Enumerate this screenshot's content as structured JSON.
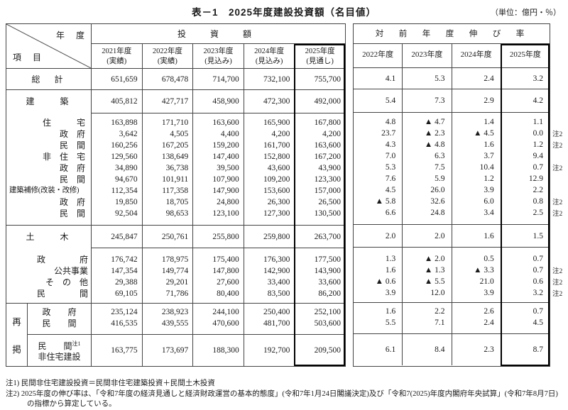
{
  "title": "表－1　2025年度建設投資額（名目値）",
  "unit_note": "（単位：億円・％）",
  "left_table": {
    "corner_top": "年　度",
    "corner_bottom": "項　目",
    "group_header": "投　資　額",
    "columns": [
      {
        "year": "2021年度",
        "kind": "(実績)"
      },
      {
        "year": "2022年度",
        "kind": "(実績)"
      },
      {
        "year": "2023年度",
        "kind": "(見込み)"
      },
      {
        "year": "2024年度",
        "kind": "(見込み)"
      },
      {
        "year": "2025年度",
        "kind": "(見通し)"
      }
    ]
  },
  "right_table": {
    "group_header": "対　前　年　度　伸　び　率",
    "columns": [
      "2022年度",
      "2023年度",
      "2024年度",
      "2025年度"
    ]
  },
  "saikei_label": "再掲",
  "note2_marker": "注2",
  "rows": [
    {
      "id": "sokei",
      "label": "総　計",
      "invest": [
        "651,659",
        "678,478",
        "714,700",
        "732,100",
        "755,700"
      ],
      "growth": [
        "4.1",
        "5.3",
        "2.4",
        "3.2"
      ],
      "note2": false
    },
    {
      "id": "kenchiku",
      "label": "建　　築",
      "invest": [
        "405,812",
        "427,717",
        "458,900",
        "472,300",
        "492,000"
      ],
      "growth": [
        "5.4",
        "7.3",
        "2.9",
        "4.2"
      ],
      "note2": false
    },
    {
      "id": "jutaku",
      "label": "住　　　宅",
      "invest": [
        "163,898",
        "171,710",
        "163,600",
        "165,900",
        "167,800"
      ],
      "growth": [
        "4.8",
        "▲ 4.7",
        "1.4",
        "1.1"
      ],
      "note2": false
    },
    {
      "id": "j_gov",
      "label": "政　府",
      "invest": [
        "3,642",
        "4,505",
        "4,400",
        "4,200",
        "4,200"
      ],
      "growth": [
        "23.7",
        "▲ 2.3",
        "▲ 4.5",
        "0.0"
      ],
      "note2": true
    },
    {
      "id": "j_min",
      "label": "民　間",
      "invest": [
        "160,256",
        "167,205",
        "159,200",
        "161,700",
        "163,600"
      ],
      "growth": [
        "4.3",
        "▲ 4.8",
        "1.6",
        "1.2"
      ],
      "note2": true
    },
    {
      "id": "hijutaku",
      "label": "非　住　宅",
      "invest": [
        "129,560",
        "138,649",
        "147,400",
        "152,800",
        "167,200"
      ],
      "growth": [
        "7.0",
        "6.3",
        "3.7",
        "9.4"
      ],
      "note2": false
    },
    {
      "id": "h_gov",
      "label": "政　府",
      "invest": [
        "34,890",
        "36,738",
        "39,500",
        "43,600",
        "43,900"
      ],
      "growth": [
        "5.3",
        "7.5",
        "10.4",
        "0.7"
      ],
      "note2": true
    },
    {
      "id": "h_min",
      "label": "民　間",
      "invest": [
        "94,670",
        "101,911",
        "107,900",
        "109,200",
        "123,300"
      ],
      "growth": [
        "7.6",
        "5.9",
        "1.2",
        "12.9"
      ],
      "note2": false
    },
    {
      "id": "hoshu",
      "label": "建築補修(改装・改修)",
      "invest": [
        "112,354",
        "117,358",
        "147,900",
        "153,600",
        "157,000"
      ],
      "growth": [
        "4.5",
        "26.0",
        "3.9",
        "2.2"
      ],
      "note2": false
    },
    {
      "id": "ho_gov",
      "label": "政　府",
      "invest": [
        "19,850",
        "18,705",
        "24,800",
        "26,300",
        "26,500"
      ],
      "growth": [
        "▲ 5.8",
        "32.6",
        "6.0",
        "0.8"
      ],
      "note2": true
    },
    {
      "id": "ho_min",
      "label": "民　間",
      "invest": [
        "92,504",
        "98,653",
        "123,100",
        "127,300",
        "130,500"
      ],
      "growth": [
        "6.6",
        "24.8",
        "3.4",
        "2.5"
      ],
      "note2": true
    },
    {
      "id": "doboku",
      "label": "土　　木",
      "invest": [
        "245,847",
        "250,761",
        "255,800",
        "259,800",
        "263,700"
      ],
      "growth": [
        "2.0",
        "2.0",
        "1.6",
        "1.5"
      ],
      "note2": false
    },
    {
      "id": "d_gov",
      "label": "政　　　　府",
      "invest": [
        "176,742",
        "178,975",
        "175,400",
        "176,300",
        "177,500"
      ],
      "growth": [
        "1.3",
        "▲ 2.0",
        "0.5",
        "0.7"
      ],
      "note2": false
    },
    {
      "id": "d_kokyo",
      "label": "公共事業",
      "invest": [
        "147,354",
        "149,774",
        "147,800",
        "142,900",
        "143,900"
      ],
      "growth": [
        "1.6",
        "▲ 1.3",
        "▲ 3.3",
        "0.7"
      ],
      "note2": true
    },
    {
      "id": "d_sonota",
      "label": "そ　の　他",
      "invest": [
        "29,388",
        "29,201",
        "27,600",
        "33,400",
        "33,600"
      ],
      "growth": [
        "▲ 0.6",
        "▲ 5.5",
        "21.0",
        "0.6"
      ],
      "note2": true
    },
    {
      "id": "d_min",
      "label": "民　　　　間",
      "invest": [
        "69,105",
        "71,786",
        "80,400",
        "83,500",
        "86,200"
      ],
      "growth": [
        "3.9",
        "12.0",
        "3.9",
        "3.2"
      ],
      "note2": true
    },
    {
      "id": "s_gov",
      "label": "政　　府",
      "invest": [
        "235,124",
        "238,923",
        "244,100",
        "250,400",
        "252,100"
      ],
      "growth": [
        "1.6",
        "2.2",
        "2.6",
        "0.7"
      ],
      "note2": false
    },
    {
      "id": "s_min",
      "label": "民　　間",
      "invest": [
        "416,535",
        "439,555",
        "470,600",
        "481,700",
        "503,600"
      ],
      "growth": [
        "5.5",
        "7.1",
        "2.4",
        "4.5"
      ],
      "note2": false
    },
    {
      "id": "s_minhij",
      "label": "民　　間",
      "sup": "注1",
      "label2": "非住宅建設",
      "invest": [
        "163,775",
        "173,697",
        "188,300",
        "192,700",
        "209,500"
      ],
      "growth": [
        "6.1",
        "8.4",
        "2.3",
        "8.7"
      ],
      "note2": false
    }
  ],
  "notes": [
    "注1) 民間非住宅建設投資＝民間非住宅建築投資＋民間土木投資",
    "注2) 2025年度の伸び率は、「令和7年度の経済見通しと経済財政運営の基本的態度」(令和7年1月24日閣議決定)及び「令和7(2025)年度内閣府年央試算」(令和7年8月7日)の指標から算定している。"
  ]
}
